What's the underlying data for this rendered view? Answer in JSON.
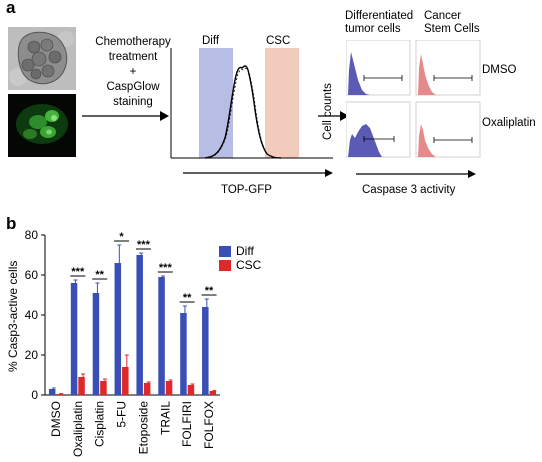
{
  "panel_a": {
    "label": "a",
    "step_text": [
      "Chemotherapy",
      "treatment",
      "+",
      "CaspGlow",
      "staining"
    ],
    "flow": {
      "gate_left": "Diff",
      "gate_right": "CSC",
      "xlabel": "TOP-GFP"
    },
    "grid": {
      "col_left": [
        "Differentiated",
        "tumor cells"
      ],
      "col_right": [
        "Cancer",
        "Stem Cells"
      ],
      "ylabel": "Cell counts",
      "xlabel": "Caspase 3 activity",
      "rows": [
        "DMSO",
        "Oxaliplatin"
      ]
    },
    "colors": {
      "diff": "#5b5bb5",
      "csc": "#e58a8a",
      "diff_gate": "#b8bde6",
      "csc_gate": "#f3cbbd"
    }
  },
  "panel_b": {
    "label": "b"
  },
  "chart_data": {
    "type": "bar",
    "title": "",
    "xlabel": "",
    "ylabel": "% Casp3-active cells",
    "ylim": [
      0,
      80
    ],
    "yticks": [
      "0",
      "20",
      "40",
      "60",
      "80"
    ],
    "categories": [
      "DMSO",
      "Oxaliplatin",
      "Cisplatin",
      "5-FU",
      "Etoposide",
      "TRAIL",
      "FOLFIRI",
      "FOLFOX"
    ],
    "series": [
      {
        "name": "Diff",
        "color": "#3a4fb5",
        "values": [
          3,
          56,
          51,
          66,
          70,
          59,
          41,
          44
        ],
        "errors": [
          0.5,
          1.5,
          5,
          9,
          1,
          0.5,
          3.5,
          4
        ]
      },
      {
        "name": "CSC",
        "color": "#e0272a",
        "values": [
          0.5,
          9,
          7,
          14,
          6,
          7,
          5,
          2
        ],
        "errors": [
          0.2,
          1.5,
          1,
          6,
          0.5,
          0.5,
          0.5,
          0.3
        ]
      }
    ],
    "significance": [
      "",
      "***",
      "**",
      "*",
      "***",
      "***",
      "**",
      "**"
    ],
    "legend_position": "top-right"
  }
}
